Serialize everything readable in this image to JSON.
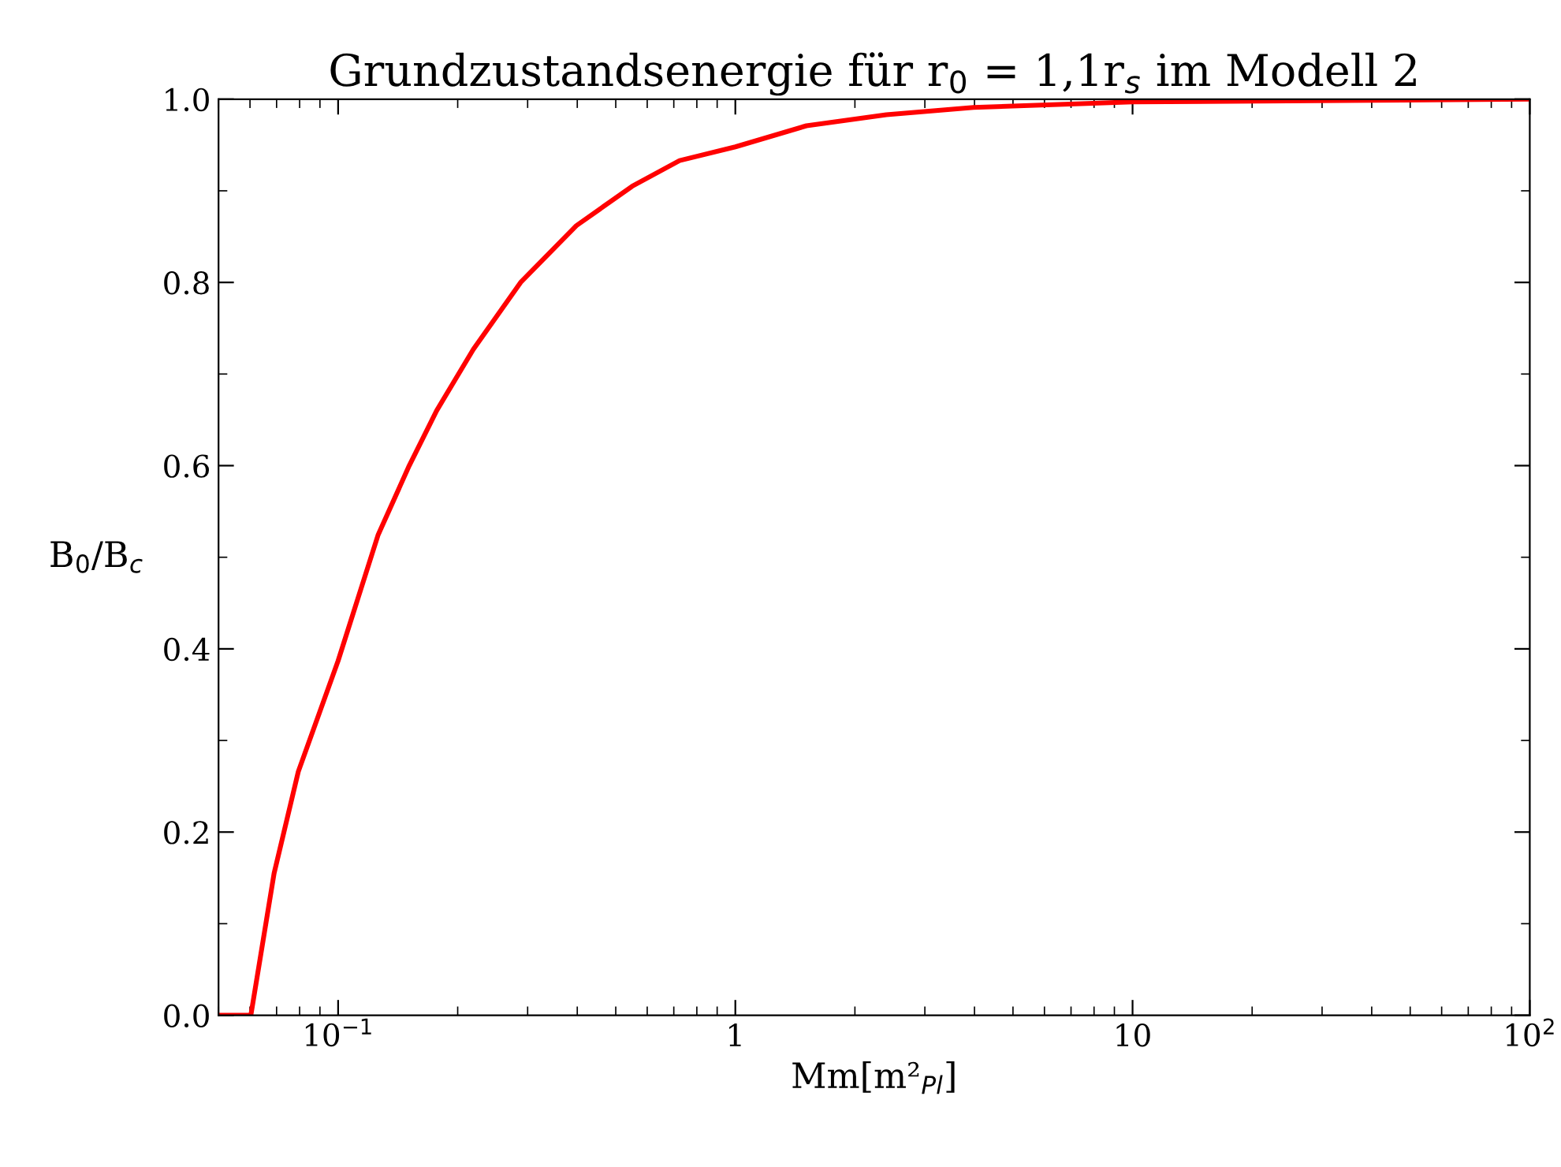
{
  "chart_data": {
    "type": "line",
    "title": "Grundzustandsenergie für r$_{0}$ = 1,1r$_{s}$ im Modell 2",
    "xlabel": "Mm[m²$_{Pl}$]",
    "ylabel": "B$_{0}$/B$_{c}$",
    "log": "x",
    "xlim": [
      0.05,
      100
    ],
    "ylim": [
      0,
      1
    ],
    "xticks": [
      {
        "value": 0.1,
        "label": "10$^{−1}$"
      },
      1,
      10,
      {
        "value": 100,
        "label": "10$^{2}$"
      }
    ],
    "yticks": [
      {
        "value": 0,
        "label": "0.0"
      },
      0.2,
      0.4,
      0.6,
      0.8,
      {
        "value": 1,
        "label": "1.0"
      }
    ],
    "grid": false,
    "legend": false,
    "marker": "none",
    "line_style": "solid",
    "series": [
      {
        "color": "#ff0000",
        "x": [
          0.05,
          0.0603,
          0.069,
          0.0794,
          0.1,
          0.126,
          0.151,
          0.177,
          0.219,
          0.288,
          0.398,
          0.55,
          0.724,
          1,
          1.51,
          2.4,
          3.98,
          10,
          100
        ],
        "values": [
          0,
          0,
          0.155,
          0.266,
          0.387,
          0.524,
          0.6,
          0.66,
          0.727,
          0.8,
          0.862,
          0.905,
          0.933,
          0.948,
          0.971,
          0.983,
          0.991,
          0.997,
          1.0
        ]
      }
    ]
  }
}
